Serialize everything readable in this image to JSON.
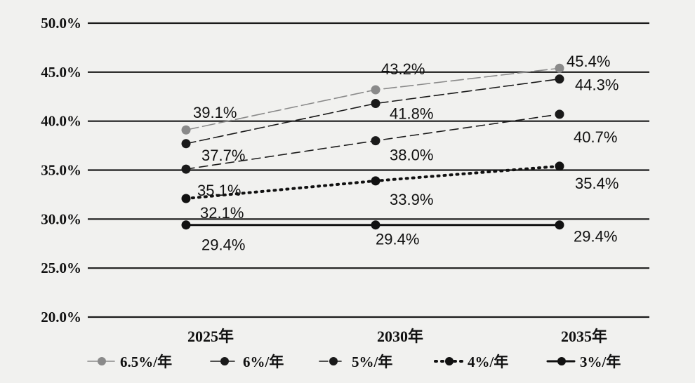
{
  "chart_data": {
    "type": "line",
    "categories": [
      "2025年",
      "2030年",
      "2035年"
    ],
    "yticks": [
      "50.0%",
      "45.0%",
      "40.0%",
      "35.0%",
      "30.0%",
      "25.0%",
      "20.0%"
    ],
    "ylim": [
      20,
      50
    ],
    "grid": true,
    "legend_position": "bottom",
    "series": [
      {
        "name": "6.5%/年",
        "values": [
          39.1,
          43.2,
          45.4
        ],
        "labels": [
          "39.1%",
          "43.2%",
          "45.4%"
        ],
        "color": "#8a8a8a",
        "style": "long-dash"
      },
      {
        "name": "6%/年",
        "values": [
          37.7,
          41.8,
          44.3
        ],
        "labels": [
          "37.7%",
          "41.8%",
          "44.3%"
        ],
        "color": "#1a1a1a",
        "style": "dash-light"
      },
      {
        "name": "5%/年",
        "values": [
          35.1,
          38.0,
          40.7
        ],
        "labels": [
          "35.1%",
          "38.0%",
          "40.7%"
        ],
        "color": "#1a1a1a",
        "style": "dash"
      },
      {
        "name": "4%/年",
        "values": [
          32.1,
          33.9,
          35.4
        ],
        "labels": [
          "32.1%",
          "33.9%",
          "35.4%"
        ],
        "color": "#111111",
        "style": "dot"
      },
      {
        "name": "3%/年",
        "values": [
          29.4,
          29.4,
          29.4
        ],
        "labels": [
          "29.4%",
          "29.4%",
          "29.4%"
        ],
        "color": "#111111",
        "style": "solid"
      }
    ]
  }
}
